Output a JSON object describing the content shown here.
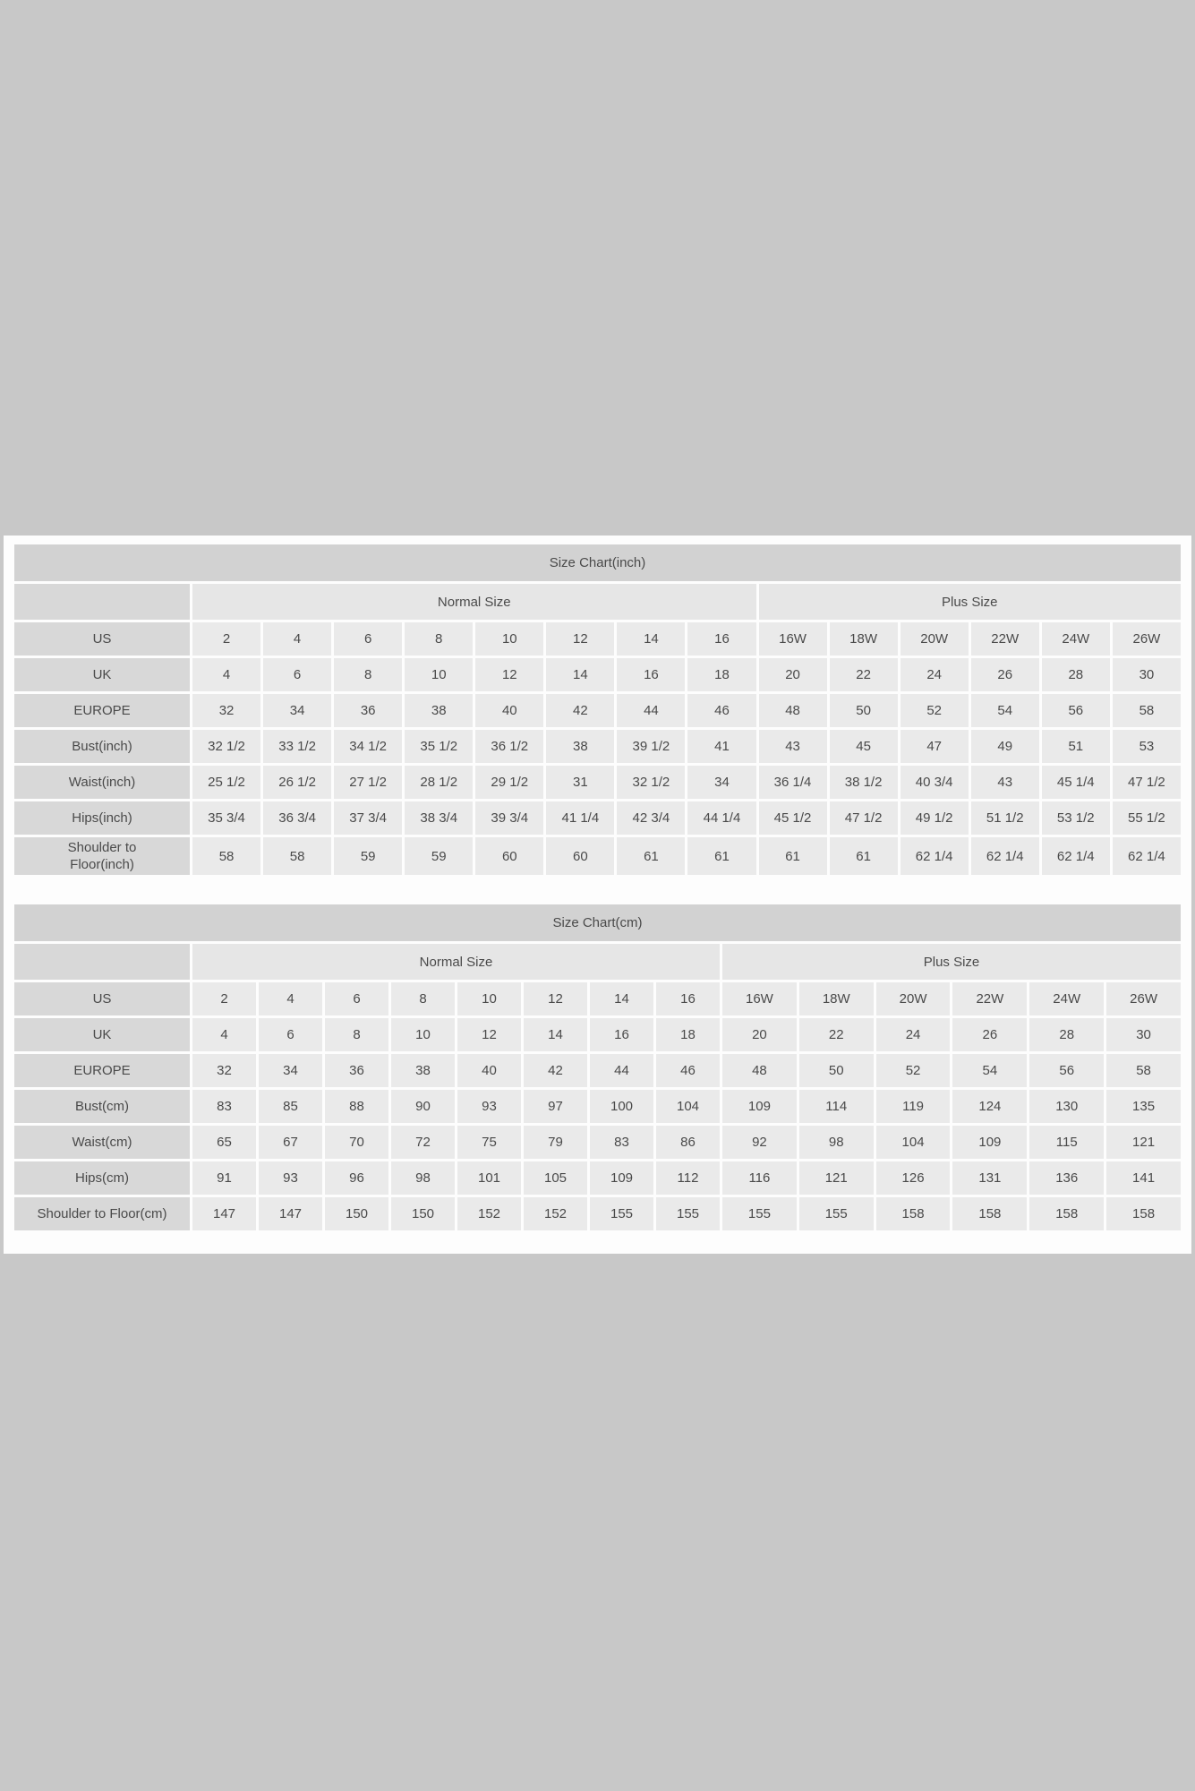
{
  "page": {
    "background_color": "#c8c8c8",
    "panel_color": "#fdfdfd",
    "title_bg": "#d2d2d2",
    "label_bg": "#d8d8d8",
    "group_header_bg": "#e6e6e6",
    "cell_bg": "#eaeaea",
    "text_color": "#4a4a4a"
  },
  "tables": [
    {
      "title": "Size Chart(inch)",
      "groups": [
        {
          "label": "Normal Size",
          "span": 8
        },
        {
          "label": "Plus Size",
          "span": 6
        }
      ],
      "rows": [
        {
          "label": "US",
          "values": [
            "2",
            "4",
            "6",
            "8",
            "10",
            "12",
            "14",
            "16",
            "16W",
            "18W",
            "20W",
            "22W",
            "24W",
            "26W"
          ]
        },
        {
          "label": "UK",
          "values": [
            "4",
            "6",
            "8",
            "10",
            "12",
            "14",
            "16",
            "18",
            "20",
            "22",
            "24",
            "26",
            "28",
            "30"
          ]
        },
        {
          "label": "EUROPE",
          "values": [
            "32",
            "34",
            "36",
            "38",
            "40",
            "42",
            "44",
            "46",
            "48",
            "50",
            "52",
            "54",
            "56",
            "58"
          ]
        },
        {
          "label": "Bust(inch)",
          "values": [
            "32 1/2",
            "33 1/2",
            "34 1/2",
            "35 1/2",
            "36 1/2",
            "38",
            "39 1/2",
            "41",
            "43",
            "45",
            "47",
            "49",
            "51",
            "53"
          ]
        },
        {
          "label": "Waist(inch)",
          "values": [
            "25 1/2",
            "26 1/2",
            "27 1/2",
            "28 1/2",
            "29 1/2",
            "31",
            "32 1/2",
            "34",
            "36 1/4",
            "38 1/2",
            "40 3/4",
            "43",
            "45 1/4",
            "47 1/2"
          ]
        },
        {
          "label": "Hips(inch)",
          "values": [
            "35 3/4",
            "36 3/4",
            "37 3/4",
            "38 3/4",
            "39 3/4",
            "41 1/4",
            "42 3/4",
            "44 1/4",
            "45 1/2",
            "47 1/2",
            "49 1/2",
            "51 1/2",
            "53 1/2",
            "55 1/2"
          ]
        },
        {
          "label": "Shoulder to Floor(inch)",
          "label_lines": [
            "Shoulder to",
            "Floor(inch)"
          ],
          "values": [
            "58",
            "58",
            "59",
            "59",
            "60",
            "60",
            "61",
            "61",
            "61",
            "61",
            "62 1/4",
            "62 1/4",
            "62 1/4",
            "62 1/4"
          ]
        }
      ]
    },
    {
      "title": "Size Chart(cm)",
      "groups": [
        {
          "label": "Normal Size",
          "span": 8
        },
        {
          "label": "Plus Size",
          "span": 6
        }
      ],
      "rows": [
        {
          "label": "US",
          "values": [
            "2",
            "4",
            "6",
            "8",
            "10",
            "12",
            "14",
            "16",
            "16W",
            "18W",
            "20W",
            "22W",
            "24W",
            "26W"
          ]
        },
        {
          "label": "UK",
          "values": [
            "4",
            "6",
            "8",
            "10",
            "12",
            "14",
            "16",
            "18",
            "20",
            "22",
            "24",
            "26",
            "28",
            "30"
          ]
        },
        {
          "label": "EUROPE",
          "values": [
            "32",
            "34",
            "36",
            "38",
            "40",
            "42",
            "44",
            "46",
            "48",
            "50",
            "52",
            "54",
            "56",
            "58"
          ]
        },
        {
          "label": "Bust(cm)",
          "values": [
            "83",
            "85",
            "88",
            "90",
            "93",
            "97",
            "100",
            "104",
            "109",
            "114",
            "119",
            "124",
            "130",
            "135"
          ]
        },
        {
          "label": "Waist(cm)",
          "values": [
            "65",
            "67",
            "70",
            "72",
            "75",
            "79",
            "83",
            "86",
            "92",
            "98",
            "104",
            "109",
            "115",
            "121"
          ]
        },
        {
          "label": "Hips(cm)",
          "values": [
            "91",
            "93",
            "96",
            "98",
            "101",
            "105",
            "109",
            "112",
            "116",
            "121",
            "126",
            "131",
            "136",
            "141"
          ]
        },
        {
          "label": "Shoulder to Floor(cm)",
          "values": [
            "147",
            "147",
            "150",
            "150",
            "152",
            "152",
            "155",
            "155",
            "155",
            "155",
            "158",
            "158",
            "158",
            "158"
          ]
        }
      ]
    }
  ]
}
